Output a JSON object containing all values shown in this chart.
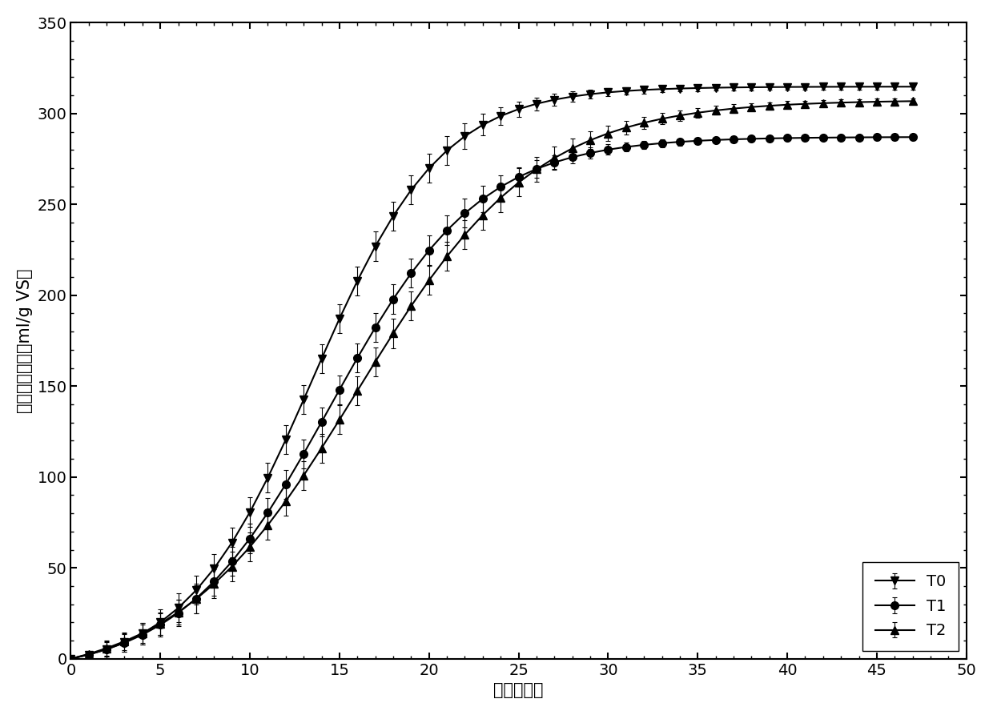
{
  "xlabel": "时间（天）",
  "ylabel": "累积甲烷产量（ml/g VS）",
  "xlim": [
    0,
    50
  ],
  "ylim": [
    0,
    350
  ],
  "xticks": [
    0,
    5,
    10,
    15,
    20,
    25,
    30,
    35,
    40,
    45,
    50
  ],
  "yticks": [
    0,
    50,
    100,
    150,
    200,
    250,
    300,
    350
  ],
  "series": [
    {
      "label": "T0",
      "marker": "v",
      "Pm": 322,
      "k": 0.28,
      "t_half": 13.5
    },
    {
      "label": "T1",
      "marker": "o",
      "Pm": 296,
      "k": 0.24,
      "t_half": 14.5
    },
    {
      "label": "T2",
      "marker": "^",
      "Pm": 320,
      "k": 0.2,
      "t_half": 16.0
    }
  ],
  "legend_loc": "lower right",
  "background_color": "#ffffff",
  "line_color": "#000000",
  "line_width": 1.5,
  "marker_size": 7,
  "label_fontsize": 15,
  "tick_fontsize": 14,
  "legend_fontsize": 14
}
